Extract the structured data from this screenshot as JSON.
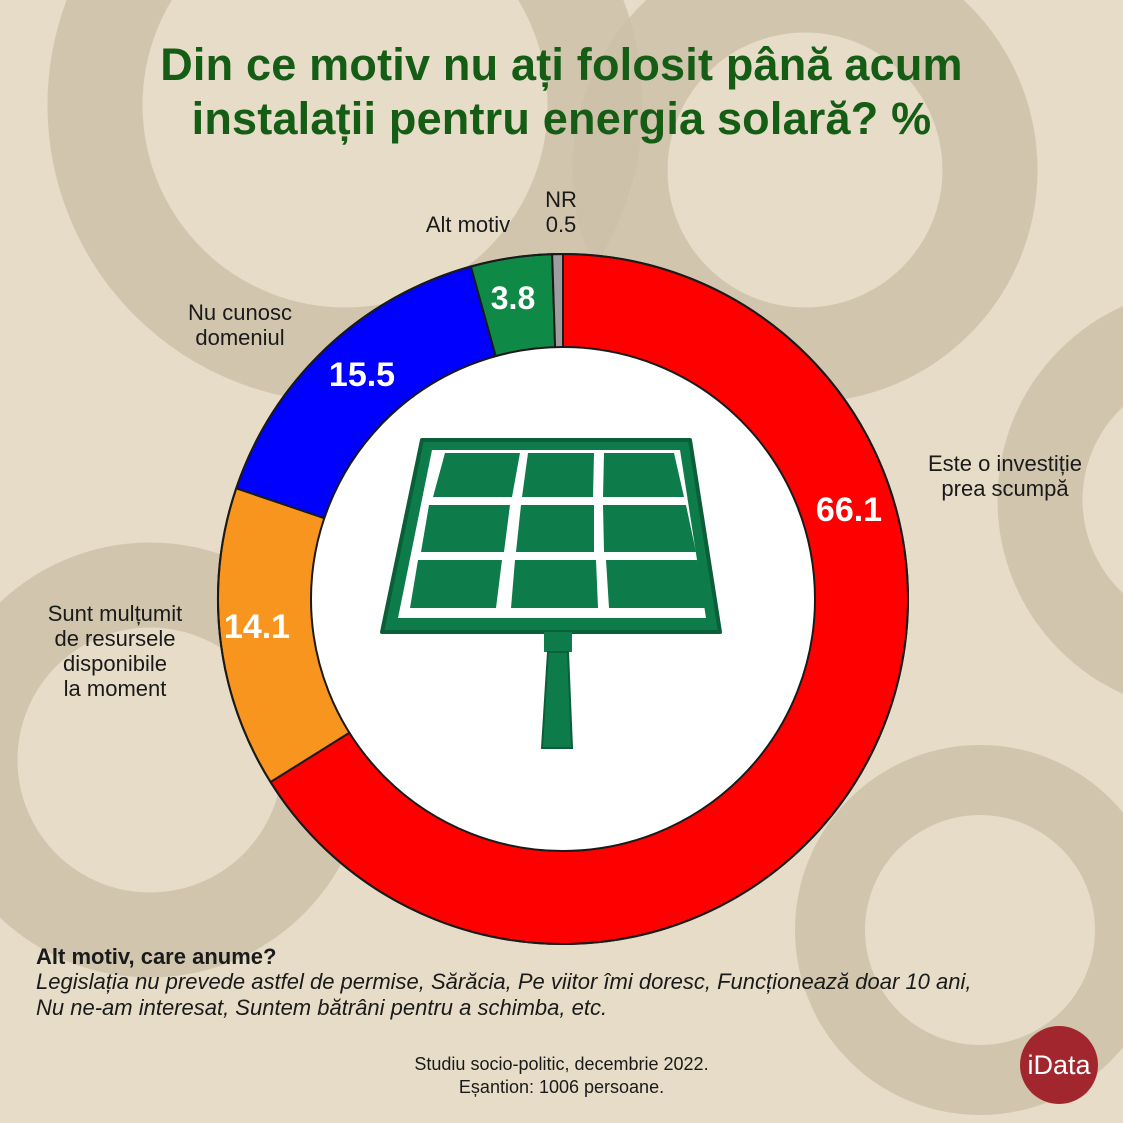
{
  "title_line1": "Din ce motiv nu ați folosit până acum",
  "title_line2": "instalații pentru energia solară? %",
  "chart_data": {
    "type": "pie",
    "variant": "donut",
    "slices": [
      {
        "label": "Este o investiție prea scumpă",
        "value": 66.1,
        "color": "#ff0000"
      },
      {
        "label": "Sunt mulțumit de resursele disponibile la moment",
        "value": 14.1,
        "color": "#f7951e"
      },
      {
        "label": "Nu cunosc domeniul",
        "value": 15.5,
        "color": "#0000ff"
      },
      {
        "label": "Alt motiv",
        "value": 3.8,
        "color": "#0e8a46"
      },
      {
        "label": "NR",
        "value": 0.5,
        "color": "#9e9e9e"
      }
    ]
  },
  "labels": {
    "scumpa_1": "Este o investiție",
    "scumpa_2": "prea scumpă",
    "multumit_1": "Sunt mulțumit",
    "multumit_2": "de resursele",
    "multumit_3": "disponibile",
    "multumit_4": "la moment",
    "nucunosc_1": "Nu cunosc",
    "nucunosc_2": "domeniul",
    "alt": "Alt motiv",
    "nr": "NR"
  },
  "values": {
    "scumpa": "66.1",
    "multumit": "14.1",
    "nucunosc": "15.5",
    "alt": "3.8",
    "nr": "0.5"
  },
  "note": {
    "heading": "Alt motiv, care anume?",
    "line1": "Legislația nu prevede astfel de permise, Sărăcia, Pe viitor îmi doresc, Funcționează doar 10 ani,",
    "line2": "Nu ne-am interesat, Suntem bătrâni pentru a schimba, etc."
  },
  "source": {
    "line1": "Studiu socio-politic, decembrie 2022.",
    "line2": "Eșantion: 1006 persoane."
  },
  "logo_text": "iData",
  "center_icon": "solar-panel-icon"
}
